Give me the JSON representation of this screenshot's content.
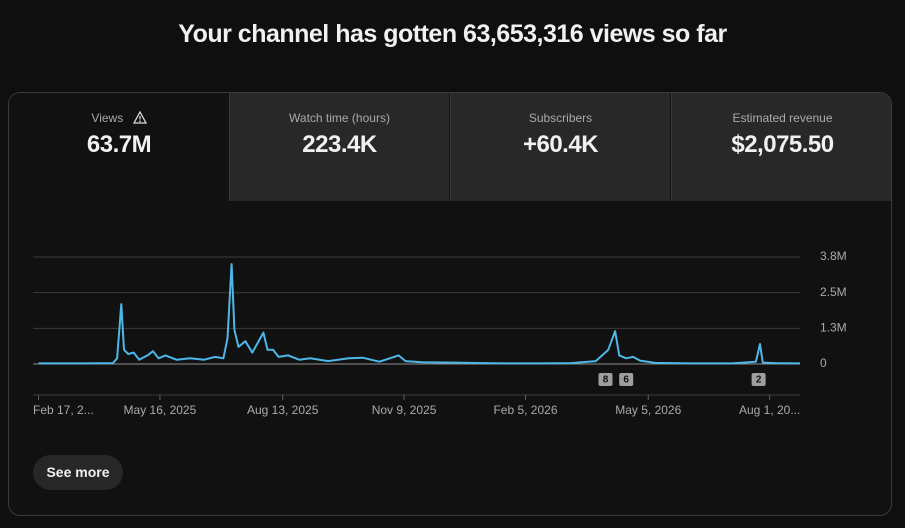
{
  "header": {
    "title": "Your channel has gotten 63,653,316 views so far"
  },
  "tabs": [
    {
      "label": "Views",
      "value": "63.7M"
    },
    {
      "label": "Watch time (hours)",
      "value": "223.4K"
    },
    {
      "label": "Subscribers",
      "value": "+60.4K"
    },
    {
      "label": "Estimated revenue",
      "value": "$2,075.50"
    }
  ],
  "chart_data": {
    "type": "line",
    "color": "#4db8e8",
    "x": [
      "2025-02-17",
      "2025-03-20",
      "2025-04-12",
      "2025-04-15",
      "2025-04-18",
      "2025-04-20",
      "2025-04-23",
      "2025-04-27",
      "2025-05-01",
      "2025-05-07",
      "2025-05-11",
      "2025-05-15",
      "2025-05-20",
      "2025-05-28",
      "2025-06-07",
      "2025-06-17",
      "2025-06-25",
      "2025-07-01",
      "2025-07-04",
      "2025-07-07",
      "2025-07-09",
      "2025-07-12",
      "2025-07-17",
      "2025-07-22",
      "2025-07-30",
      "2025-08-02",
      "2025-08-06",
      "2025-08-10",
      "2025-08-17",
      "2025-08-25",
      "2025-09-02",
      "2025-09-15",
      "2025-09-30",
      "2025-10-10",
      "2025-10-22",
      "2025-11-05",
      "2025-11-10",
      "2025-11-22",
      "2025-12-15",
      "2026-01-05",
      "2026-01-25",
      "2026-02-15",
      "2026-03-10",
      "2026-03-28",
      "2026-04-06",
      "2026-04-11",
      "2026-04-14",
      "2026-04-19",
      "2026-04-24",
      "2026-04-29",
      "2026-05-10",
      "2026-06-05",
      "2026-07-05",
      "2026-07-22",
      "2026-07-25",
      "2026-07-27",
      "2026-08-05",
      "2026-08-23"
    ],
    "values": [
      20000,
      20000,
      30000,
      200000,
      2100000,
      500000,
      350000,
      400000,
      150000,
      300000,
      450000,
      200000,
      300000,
      150000,
      200000,
      150000,
      250000,
      200000,
      900000,
      3500000,
      1200000,
      600000,
      800000,
      400000,
      1100000,
      500000,
      500000,
      250000,
      300000,
      150000,
      200000,
      100000,
      200000,
      220000,
      80000,
      300000,
      100000,
      60000,
      50000,
      30000,
      20000,
      20000,
      30000,
      100000,
      500000,
      1150000,
      300000,
      200000,
      250000,
      120000,
      40000,
      20000,
      20000,
      80000,
      700000,
      50000,
      30000,
      20000
    ],
    "xlim": [
      "2025-02-13",
      "2026-08-23"
    ],
    "xticks": [
      {
        "value": "2025-02-17",
        "label": "Feb 17, 2..."
      },
      {
        "value": "2025-05-16",
        "label": "May 16, 2025"
      },
      {
        "value": "2025-08-13",
        "label": "Aug 13, 2025"
      },
      {
        "value": "2025-11-09",
        "label": "Nov 9, 2025"
      },
      {
        "value": "2026-02-05",
        "label": "Feb 5, 2026"
      },
      {
        "value": "2026-05-05",
        "label": "May 5, 2026"
      },
      {
        "value": "2026-08-01",
        "label": "Aug 1, 20..."
      }
    ],
    "ylim": [
      0,
      3750000
    ],
    "yticks": [
      0,
      {
        "value": 1250000,
        "label": "1.3M"
      },
      {
        "value": 2500000,
        "label": "2.5M"
      },
      {
        "value": 3750000,
        "label": "3.8M"
      }
    ],
    "grid": true,
    "annotations": [
      {
        "x": "2026-04-04",
        "label": "8"
      },
      {
        "x": "2026-04-19",
        "label": "6"
      },
      {
        "x": "2026-07-24",
        "label": "2"
      }
    ]
  },
  "button": "See more"
}
